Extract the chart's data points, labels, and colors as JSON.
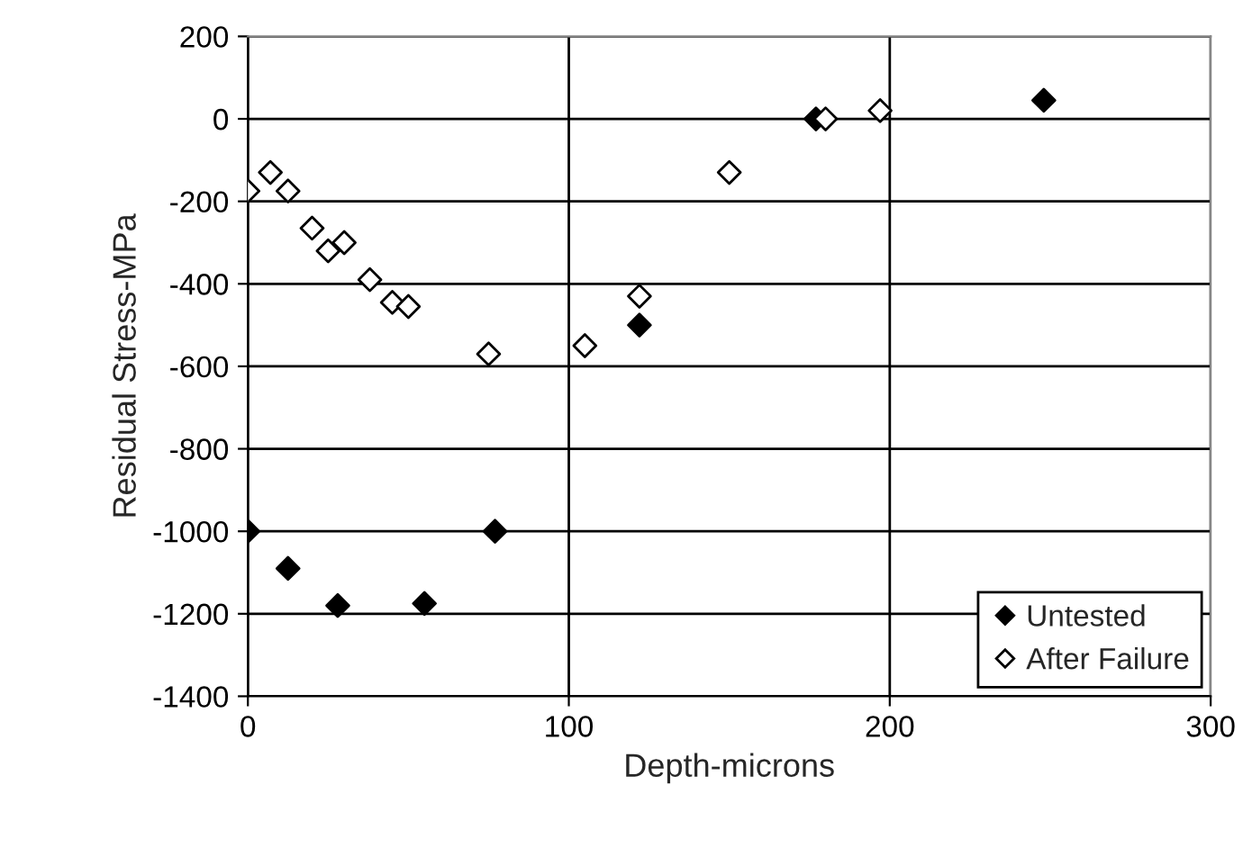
{
  "chart_data": {
    "type": "scatter",
    "xlabel": "Depth-microns",
    "ylabel": "Residual Stress-MPa",
    "xlim": [
      0,
      300
    ],
    "xticks": [
      0,
      100,
      200,
      300
    ],
    "ylim": [
      -1400,
      200
    ],
    "yticks": [
      -1400,
      -1200,
      -1000,
      -800,
      -600,
      -400,
      -200,
      0,
      200
    ],
    "grid": true,
    "legend": "bottom right",
    "marker": "diamond",
    "series": [
      {
        "name": "Untested",
        "color": "#000000",
        "x": [
          0,
          12.5,
          28,
          55,
          77,
          122,
          177,
          248
        ],
        "values": [
          -1000,
          -1090,
          -1180,
          -1175,
          -1000,
          -500,
          0,
          45
        ]
      },
      {
        "name": "After Failure",
        "color": "#ffffff",
        "x": [
          0,
          7,
          12.5,
          20,
          25,
          30,
          38,
          45,
          50,
          75,
          105,
          122,
          150,
          180,
          197
        ],
        "values": [
          -175,
          -130,
          -175,
          -265,
          -320,
          -300,
          -390,
          -445,
          -455,
          -570,
          -550,
          -430,
          -130,
          0,
          20
        ]
      }
    ]
  }
}
